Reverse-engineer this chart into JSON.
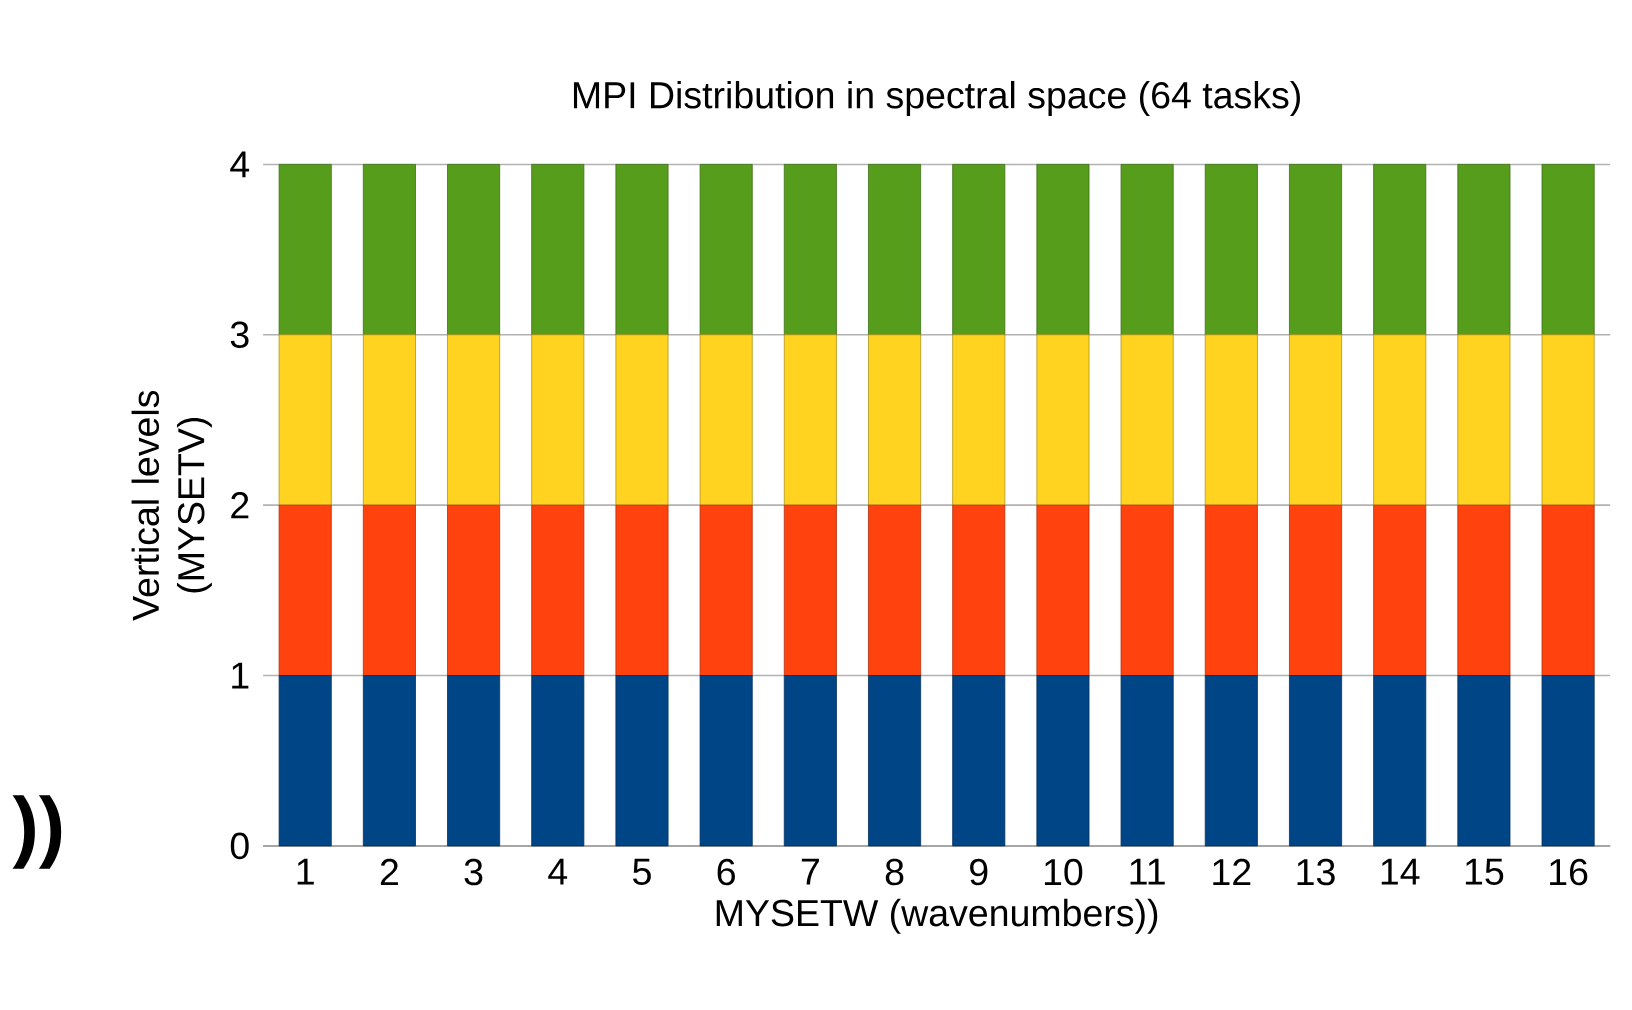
{
  "chart_data": {
    "type": "bar",
    "stacked": true,
    "title": "MPI Distribution in spectral space (64 tasks)",
    "xlabel": "MYSETW (wavenumbers))",
    "ylabel": "Vertical levels (MYSETV)",
    "categories": [
      "1",
      "2",
      "3",
      "4",
      "5",
      "6",
      "7",
      "8",
      "9",
      "10",
      "11",
      "12",
      "13",
      "14",
      "15",
      "16"
    ],
    "series": [
      {
        "color": "#004586",
        "values": [
          1,
          1,
          1,
          1,
          1,
          1,
          1,
          1,
          1,
          1,
          1,
          1,
          1,
          1,
          1,
          1
        ]
      },
      {
        "color": "#ff420e",
        "values": [
          1,
          1,
          1,
          1,
          1,
          1,
          1,
          1,
          1,
          1,
          1,
          1,
          1,
          1,
          1,
          1
        ]
      },
      {
        "color": "#ffd320",
        "values": [
          1,
          1,
          1,
          1,
          1,
          1,
          1,
          1,
          1,
          1,
          1,
          1,
          1,
          1,
          1,
          1
        ]
      },
      {
        "color": "#579d1c",
        "values": [
          1,
          1,
          1,
          1,
          1,
          1,
          1,
          1,
          1,
          1,
          1,
          1,
          1,
          1,
          1,
          1
        ]
      }
    ],
    "ylim": [
      0,
      4
    ],
    "yticks": [
      0,
      1,
      2,
      3,
      4
    ],
    "grid": "y",
    "annotations": [
      "))"
    ]
  }
}
